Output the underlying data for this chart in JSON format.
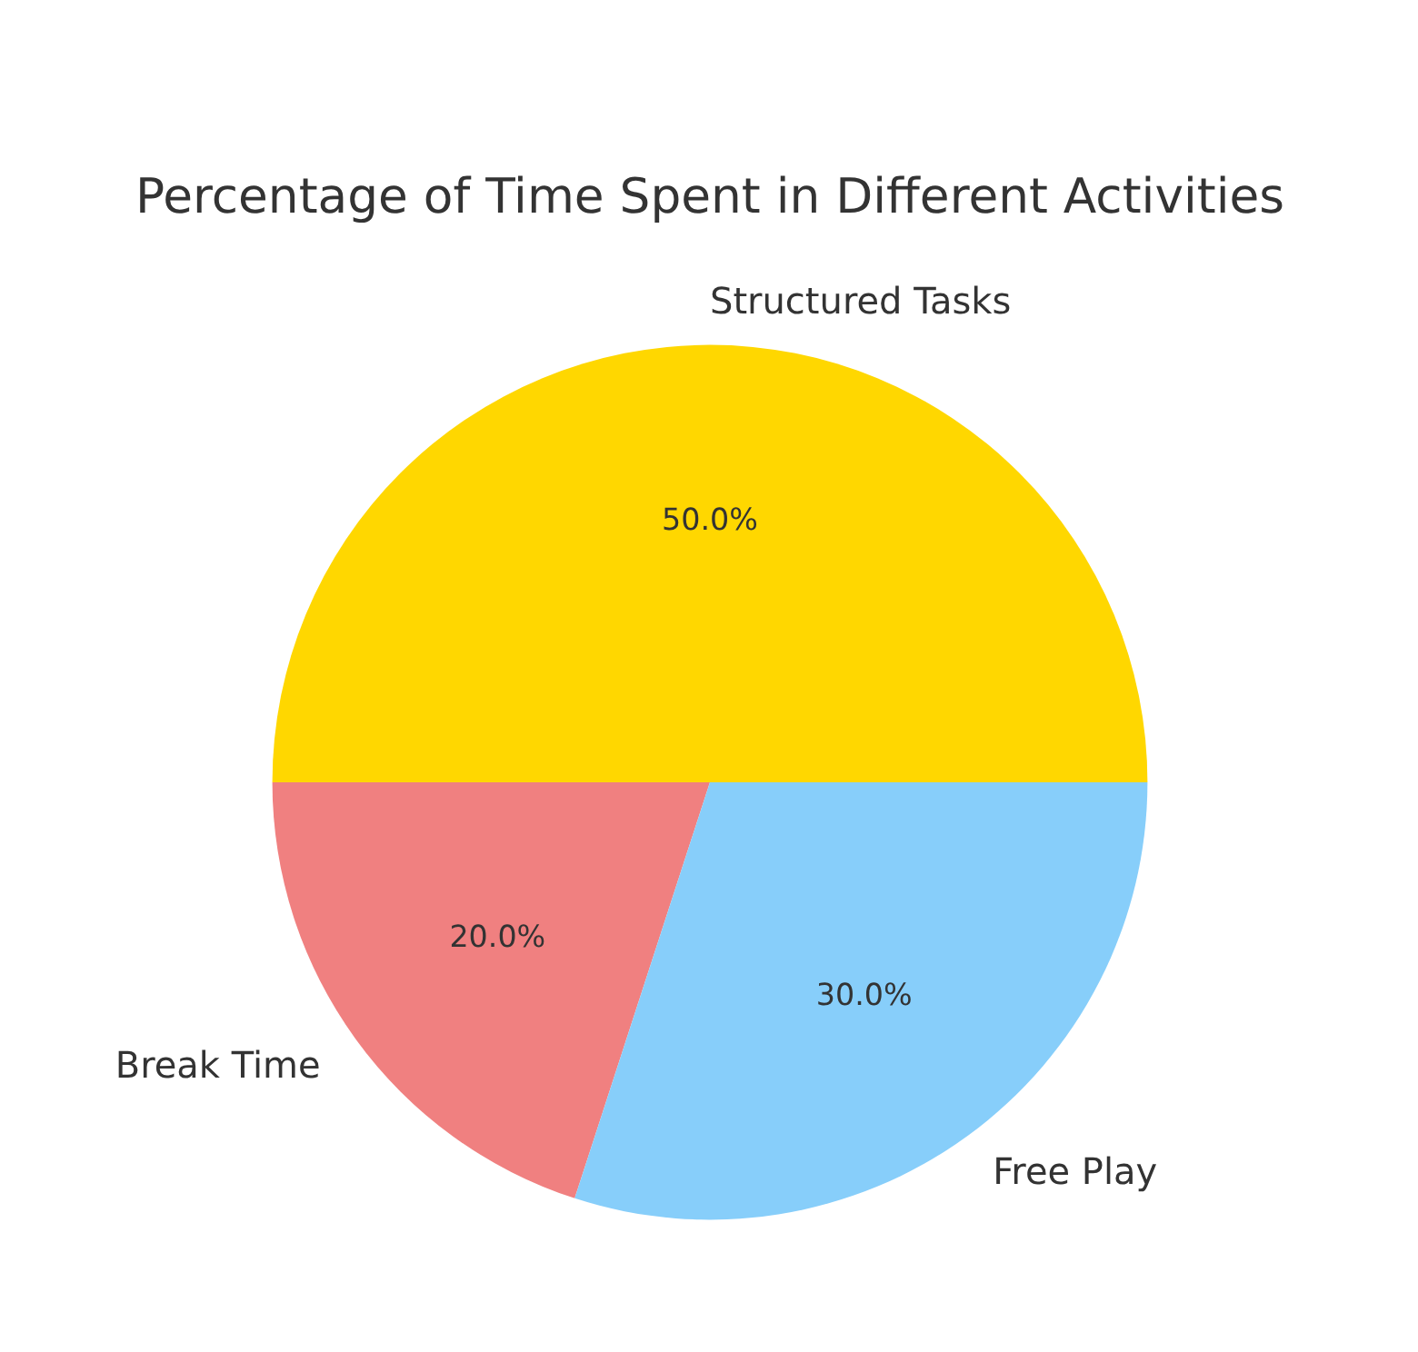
{
  "chart_data": {
    "type": "pie",
    "title": "Percentage of Time Spent in Different Activities",
    "categories": [
      "Structured Tasks",
      "Break Time",
      "Free Play"
    ],
    "values": [
      50,
      20,
      30
    ],
    "colors": [
      "#ffd700",
      "#f08080",
      "#87cefa"
    ],
    "value_labels": [
      "50.0%",
      "20.0%",
      "30.0%"
    ]
  }
}
